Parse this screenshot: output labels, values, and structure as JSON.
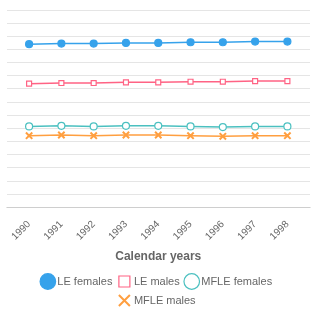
{
  "chart_data": {
    "type": "line",
    "xlabel": "Calendar years",
    "x": [
      1990,
      1991,
      1992,
      1993,
      1994,
      1995,
      1996,
      1997,
      1998
    ],
    "series": [
      {
        "name": "LE females",
        "marker": "dot",
        "values": [
          79.8,
          79.9,
          79.9,
          80.0,
          80.0,
          80.1,
          80.1,
          80.2,
          80.2
        ]
      },
      {
        "name": "LE males",
        "marker": "square",
        "values": [
          73.8,
          73.9,
          73.9,
          74.0,
          74.0,
          74.1,
          74.1,
          74.2,
          74.2
        ]
      },
      {
        "name": "MFLE females",
        "marker": "circle",
        "values": [
          67.3,
          67.4,
          67.3,
          67.4,
          67.4,
          67.3,
          67.2,
          67.3,
          67.3
        ]
      },
      {
        "name": "MFLE males",
        "marker": "x",
        "values": [
          65.9,
          66.0,
          65.9,
          66.0,
          66.0,
          65.9,
          65.8,
          65.9,
          65.9
        ]
      }
    ],
    "xlim": [
      1989.3,
      1998.7
    ],
    "xticks": [
      1990,
      1991,
      1992,
      1993,
      1994,
      1995,
      1996,
      1997,
      1998
    ],
    "ylim": [
      55,
      85
    ],
    "yticks": [
      55,
      57,
      59,
      61,
      63,
      65,
      67,
      69,
      71,
      73,
      75,
      77,
      79,
      81,
      83,
      85
    ],
    "grid": true,
    "legend": "bottom",
    "tick_labels": "x"
  }
}
